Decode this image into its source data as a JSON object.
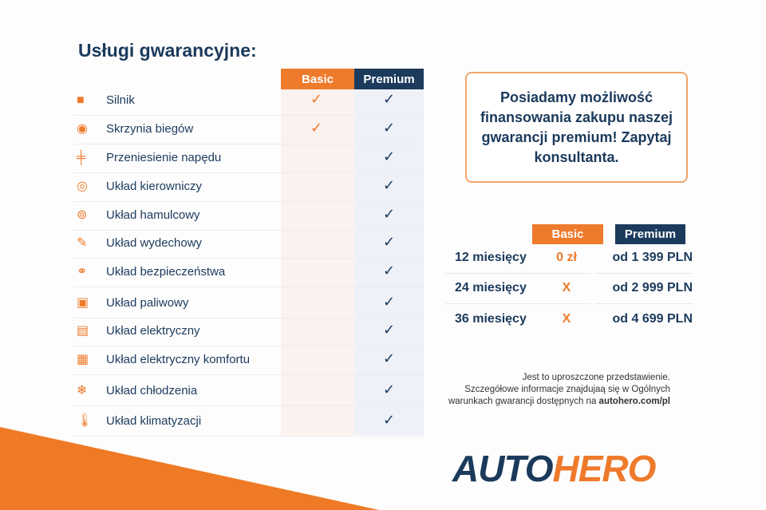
{
  "title": "Usługi gwarancyjne:",
  "columns": {
    "basic": "Basic",
    "premium": "Premium"
  },
  "check_mark": "✓",
  "colors": {
    "orange": "#ee7a2b",
    "navy": "#1b3a5c"
  },
  "services": [
    {
      "label": "Silnik",
      "icon": "engine-icon",
      "basic": true,
      "premium": true
    },
    {
      "label": "Skrzynia biegów",
      "icon": "gearbox-icon",
      "basic": true,
      "premium": true
    },
    {
      "label": "Przeniesienie napędu",
      "icon": "drivetrain-icon",
      "basic": false,
      "premium": true
    },
    {
      "label": "Układ kierowniczy",
      "icon": "steering-wheel-icon",
      "basic": false,
      "premium": true
    },
    {
      "label": "Układ hamulcowy",
      "icon": "brake-disc-icon",
      "basic": false,
      "premium": true
    },
    {
      "label": "Układ wydechowy",
      "icon": "exhaust-icon",
      "basic": false,
      "premium": true
    },
    {
      "label": "Układ bezpieczeństwa",
      "icon": "seatbelt-icon",
      "basic": false,
      "premium": true
    },
    {
      "label": "Układ paliwowy",
      "icon": "fuel-pump-icon",
      "basic": false,
      "premium": true
    },
    {
      "label": "Układ elektryczny",
      "icon": "battery-icon",
      "basic": false,
      "premium": true
    },
    {
      "label": "Układ elektryczny komfortu",
      "icon": "chip-icon",
      "basic": false,
      "premium": true
    },
    {
      "label": "Układ chłodzenia",
      "icon": "snowflake-icon",
      "basic": false,
      "premium": true
    },
    {
      "label": "Układ klimatyzacji",
      "icon": "thermometer-icon",
      "basic": false,
      "premium": true
    }
  ],
  "promo": "Posiadamy możliwość finansowania zakupu naszej gwarancji premium! Zapytaj konsultanta.",
  "pricing": {
    "basic_header": "Basic",
    "premium_header": "Premium",
    "rows": [
      {
        "period": "12 miesięcy",
        "basic": "0 zł",
        "premium": "od 1 399 PLN"
      },
      {
        "period": "24 miesięcy",
        "basic": "X",
        "premium": "od 2 999 PLN"
      },
      {
        "period": "36 miesięcy",
        "basic": "X",
        "premium": "od 4 699 PLN"
      }
    ]
  },
  "note": {
    "line1": "Jest to uproszczone przedstawienie.",
    "line2": "Szczegółowe informacje znajdujaą się w Ogólnych",
    "line3_prefix": "warunkach gwarancji dostępnych na ",
    "link": "autohero.com/pl"
  },
  "logo": {
    "part1": "AUTO",
    "part2": "HERO"
  }
}
